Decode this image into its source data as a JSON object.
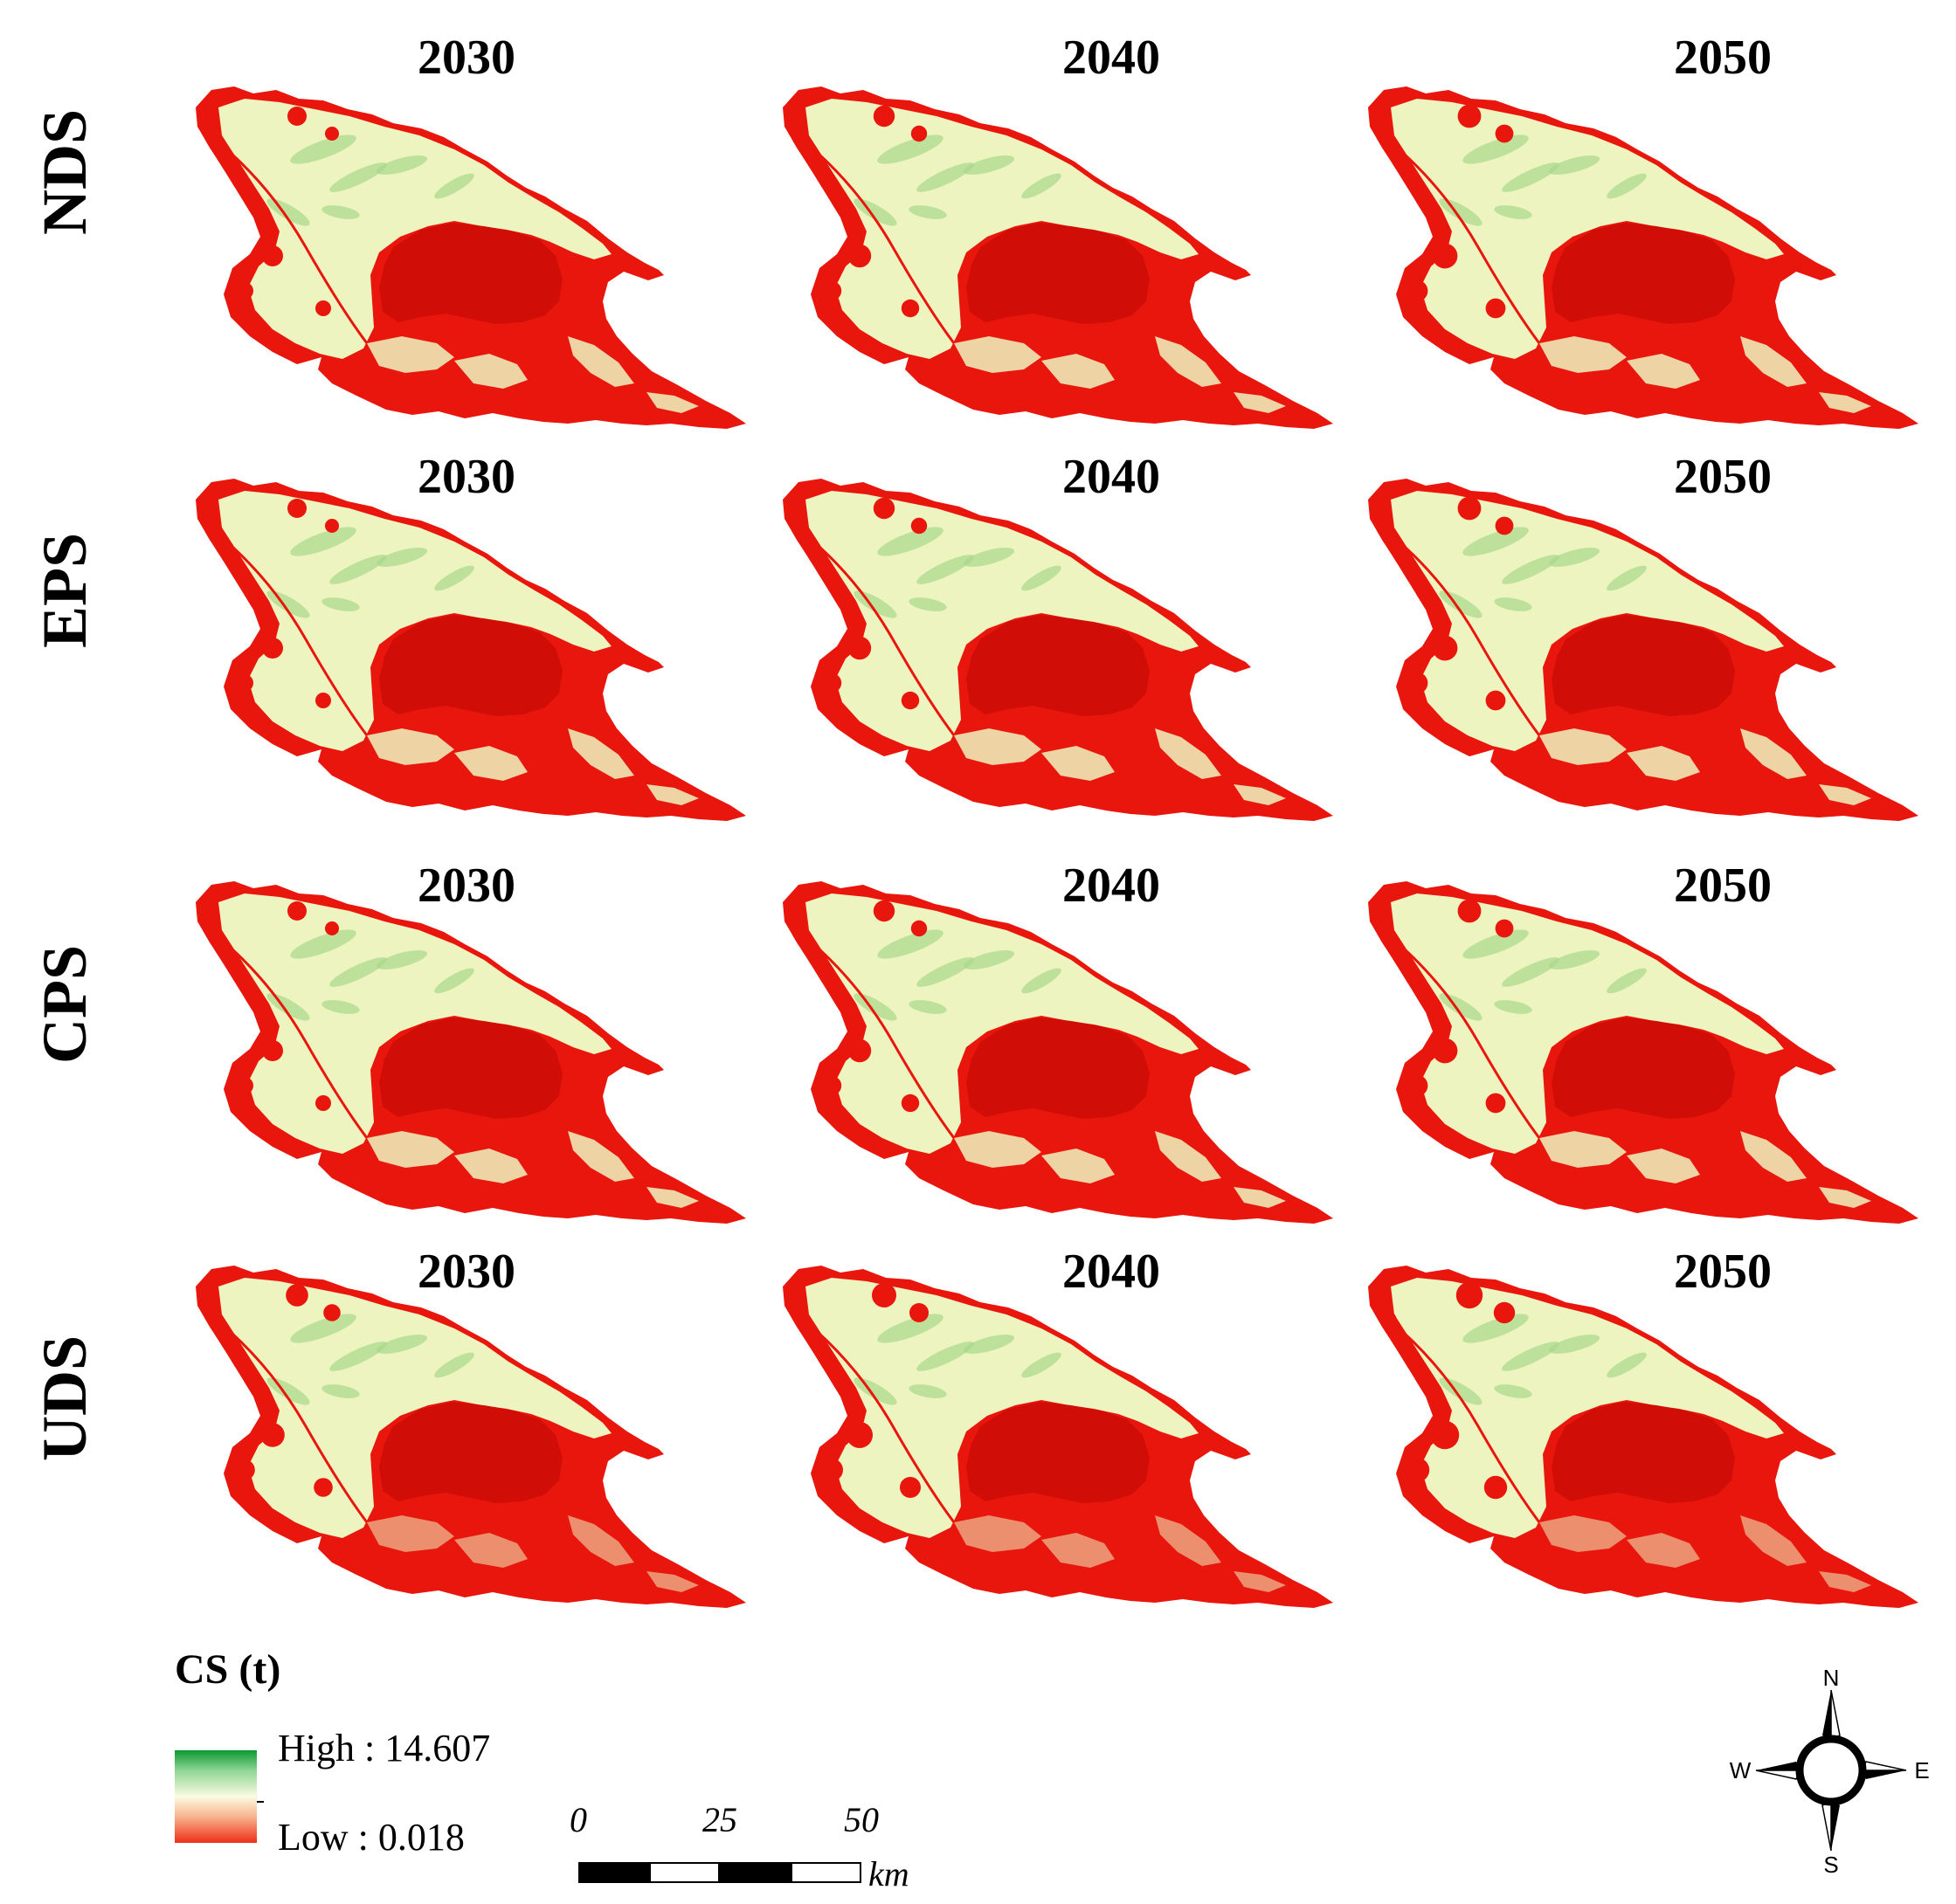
{
  "columns": [
    "2030",
    "2040",
    "2050"
  ],
  "rows": [
    {
      "scenario": "NDS",
      "years": [
        "2030",
        "2040",
        "2050"
      ]
    },
    {
      "scenario": "EPS",
      "years": [
        "2030",
        "2040",
        "2050"
      ]
    },
    {
      "scenario": "CPS",
      "years": [
        "2030",
        "2040",
        "2050"
      ]
    },
    {
      "scenario": "UDS",
      "years": [
        "2030",
        "2040",
        "2050"
      ]
    }
  ],
  "legend": {
    "title": "CS  (t)",
    "high_label": "High : 14.607",
    "low_label": "Low : 0.018",
    "ramp_colors": [
      "#0a9a32",
      "#8fd596",
      "#fbfbe2",
      "#f7b28d",
      "#ee2f17"
    ]
  },
  "scale_bar": {
    "ticks": [
      "0",
      "25",
      "50"
    ],
    "unit": "km"
  },
  "compass": {
    "n": "N",
    "s": "S",
    "e": "E",
    "w": "W"
  },
  "map_colors": {
    "low": "#e8160c",
    "core": "#d10d07",
    "mid": "#eef4c0",
    "high": "#a8d88a"
  }
}
